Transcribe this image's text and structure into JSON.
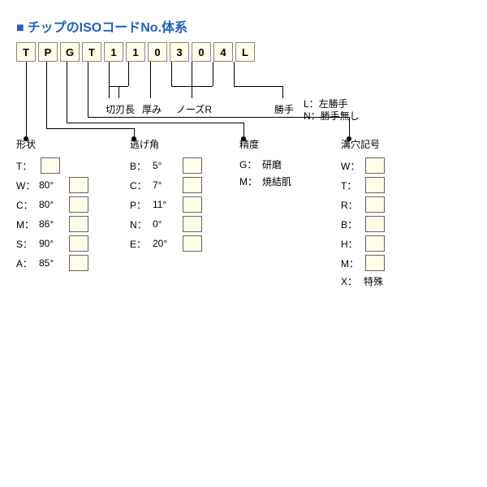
{
  "title": "チップのISOコードNo.体系",
  "code": [
    "T",
    "P",
    "G",
    "T",
    "1",
    "1",
    "0",
    "3",
    "0",
    "4",
    "L"
  ],
  "labels": {
    "cutlen": "切刃長",
    "thickness": "厚み",
    "noseR": "ノーズR",
    "hand": "勝手",
    "handL": "L：左勝手",
    "handN": "N：勝手無し"
  },
  "box": {
    "bg": "#fffde8",
    "border": "#888888"
  },
  "shape": {
    "hdr": "形状",
    "items": [
      {
        "k": "T",
        "v": ""
      },
      {
        "k": "W",
        "v": "80°"
      },
      {
        "k": "C",
        "v": "80°"
      },
      {
        "k": "M",
        "v": "86°"
      },
      {
        "k": "S",
        "v": "90°"
      },
      {
        "k": "A",
        "v": "85°"
      }
    ]
  },
  "relief": {
    "hdr": "逃げ角",
    "items": [
      {
        "k": "B",
        "v": "5°"
      },
      {
        "k": "C",
        "v": "7°"
      },
      {
        "k": "P",
        "v": "11°"
      },
      {
        "k": "N",
        "v": "0°"
      },
      {
        "k": "E",
        "v": "20°"
      }
    ]
  },
  "precision": {
    "hdr": "精度",
    "items": [
      {
        "k": "G",
        "v": "研磨"
      },
      {
        "k": "M",
        "v": "焼結肌"
      }
    ]
  },
  "hole": {
    "hdr": "溝穴記号",
    "items": [
      {
        "k": "W"
      },
      {
        "k": "T"
      },
      {
        "k": "R"
      },
      {
        "k": "B"
      },
      {
        "k": "H"
      },
      {
        "k": "M"
      },
      {
        "k": "X",
        "v": "特殊"
      }
    ]
  }
}
